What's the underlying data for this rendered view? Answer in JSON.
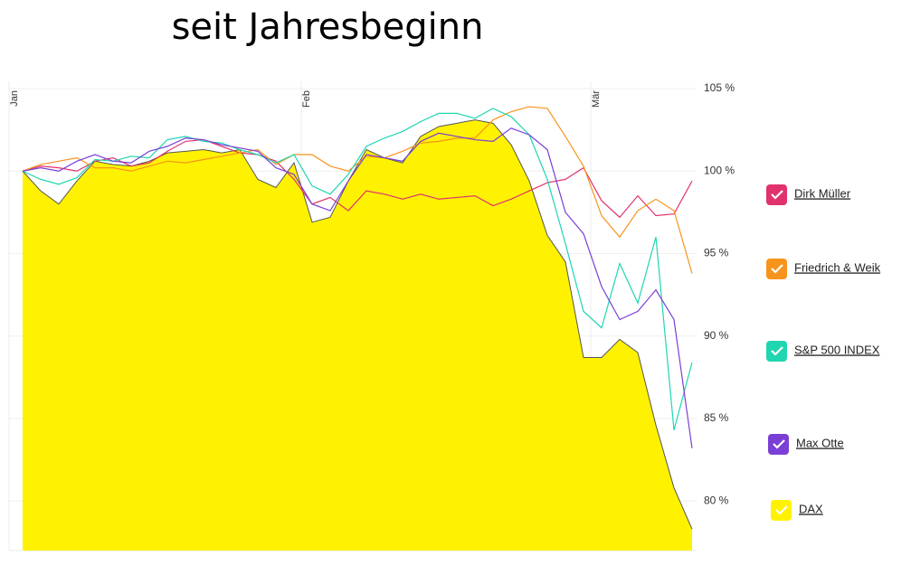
{
  "chart_data": {
    "type": "line",
    "title": "seit Jahresbeginn",
    "categories": [
      "Jan",
      null,
      null,
      null,
      null,
      null,
      null,
      null,
      null,
      null,
      null,
      null,
      null,
      null,
      null,
      null,
      "Feb",
      null,
      null,
      null,
      null,
      null,
      null,
      null,
      null,
      null,
      null,
      null,
      null,
      null,
      null,
      null,
      "Mär",
      null,
      null,
      null,
      null,
      null
    ],
    "ylim": [
      77,
      105
    ],
    "yticks": [
      {
        "value": 80,
        "label": "80 %"
      },
      {
        "value": 85,
        "label": "85 %"
      },
      {
        "value": 90,
        "label": "90 %"
      },
      {
        "value": 95,
        "label": "95 %"
      },
      {
        "value": 100,
        "label": "100 %"
      },
      {
        "value": 105,
        "label": "105 %"
      }
    ],
    "grid": true,
    "series": [
      {
        "name": "DAX",
        "color": "#fff200",
        "area": true,
        "values": [
          100,
          98.8,
          98.0,
          99.4,
          100.6,
          100.4,
          100.3,
          100.6,
          101.1,
          101.2,
          101.3,
          101.1,
          101.3,
          99.5,
          99.0,
          100.5,
          96.9,
          97.2,
          99.4,
          101.3,
          100.8,
          100.5,
          102.1,
          102.7,
          102.9,
          103.1,
          102.9,
          101.6,
          99.4,
          96.1,
          94.5,
          88.7,
          88.7,
          89.8,
          89.0,
          84.6,
          80.8,
          78.3
        ]
      },
      {
        "name": "Dirk Müller",
        "color": "#e0336e",
        "values": [
          100,
          100.3,
          100.2,
          100.0,
          100.6,
          100.8,
          100.3,
          100.5,
          101.2,
          101.8,
          101.9,
          101.5,
          101.1,
          101.0,
          100.6,
          99.5,
          98.0,
          98.4,
          97.6,
          98.8,
          98.6,
          98.3,
          98.6,
          98.3,
          98.4,
          98.5,
          97.9,
          98.3,
          98.8,
          99.3,
          99.5,
          100.2,
          98.2,
          97.2,
          98.5,
          97.3,
          97.4,
          99.4
        ]
      },
      {
        "name": "Friedrich & Weik",
        "color": "#f7941d",
        "values": [
          100,
          100.4,
          100.6,
          100.8,
          100.2,
          100.2,
          100.0,
          100.3,
          100.6,
          100.5,
          100.7,
          100.9,
          101.1,
          101.3,
          100.4,
          101.0,
          101.0,
          100.3,
          100.0,
          100.9,
          100.8,
          101.2,
          101.7,
          101.8,
          102.0,
          102.0,
          103.1,
          103.6,
          103.9,
          103.8,
          102.1,
          100.3,
          97.3,
          96.0,
          97.6,
          98.3,
          97.6,
          93.8
        ]
      },
      {
        "name": "S&P 500 INDEX",
        "color": "#1fd6b0",
        "values": [
          100,
          99.5,
          99.2,
          99.6,
          100.7,
          100.6,
          100.9,
          100.8,
          101.9,
          102.1,
          101.8,
          101.7,
          101.3,
          101.0,
          100.5,
          101.0,
          99.1,
          98.6,
          99.8,
          101.5,
          102.0,
          102.4,
          103.0,
          103.5,
          103.5,
          103.2,
          103.8,
          103.3,
          102.2,
          99.5,
          95.6,
          91.5,
          90.5,
          94.4,
          92.0,
          96.0,
          84.3,
          88.4
        ]
      },
      {
        "name": "Max Otte",
        "color": "#7b3fd6",
        "values": [
          100,
          100.2,
          100.0,
          100.6,
          101.0,
          100.6,
          100.5,
          101.2,
          101.5,
          102.0,
          101.9,
          101.6,
          101.4,
          101.2,
          100.2,
          99.8,
          98.0,
          97.6,
          99.4,
          101.0,
          100.8,
          100.6,
          101.8,
          102.3,
          102.1,
          101.9,
          101.8,
          102.6,
          102.2,
          101.3,
          97.5,
          96.2,
          93.0,
          91.0,
          91.5,
          92.8,
          91.0,
          83.2
        ]
      }
    ]
  }
}
